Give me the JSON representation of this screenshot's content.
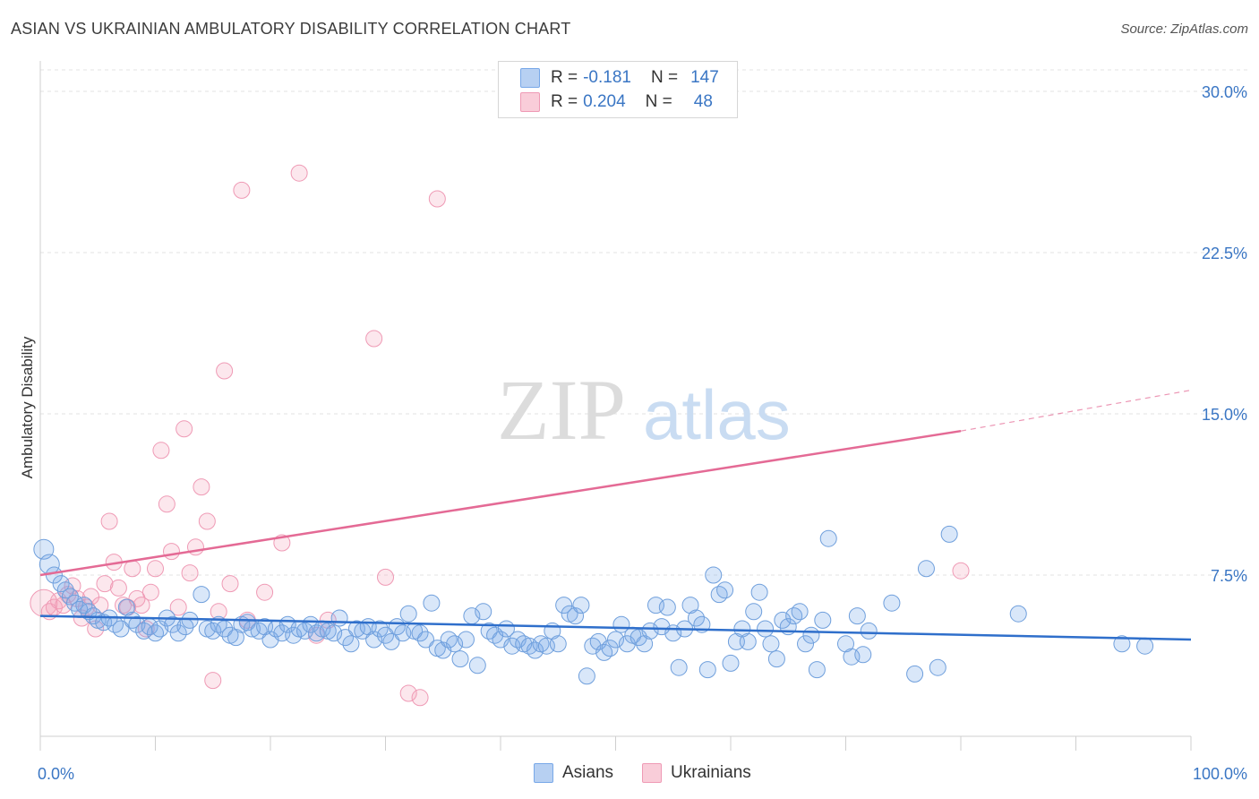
{
  "title": "ASIAN VS UKRAINIAN AMBULATORY DISABILITY CORRELATION CHART",
  "source": "Source: ZipAtlas.com",
  "watermark": {
    "zip": "ZIP",
    "atlas": "atlas"
  },
  "legend": {
    "rows": [
      {
        "r_label": "R =",
        "r_value": "-0.181",
        "n_label": "N =",
        "n_value": "147"
      },
      {
        "r_label": "R =",
        "r_value": "0.204",
        "n_label": "N =",
        "n_value": "48"
      }
    ]
  },
  "bottom_legend": {
    "asians": "Asians",
    "ukrainians": "Ukrainians"
  },
  "colors": {
    "asian_fill": "rgba(120,168,232,0.28)",
    "asian_stroke": "#6f9fdc",
    "asian_line": "#2f6fcb",
    "ukr_fill": "rgba(244,160,185,0.25)",
    "ukr_stroke": "#ef9ab5",
    "ukr_line": "#e46a95",
    "tick_label": "#3a76c4"
  },
  "chart_data": {
    "type": "scatter",
    "title": "ASIAN VS UKRAINIAN AMBULATORY DISABILITY CORRELATION CHART",
    "xlabel": "",
    "ylabel": "Ambulatory Disability",
    "xlim": [
      0,
      100
    ],
    "ylim": [
      0,
      31
    ],
    "x_tick_labels": [
      "0.0%",
      "100.0%"
    ],
    "y_ticks": [
      7.5,
      15.0,
      22.5,
      30.0
    ],
    "y_tick_labels": [
      "7.5%",
      "15.0%",
      "22.5%",
      "30.0%"
    ],
    "grid": true,
    "legend_position": "top-center",
    "series": [
      {
        "name": "Asians",
        "r": -0.181,
        "n": 147,
        "trend": {
          "x": [
            0,
            100
          ],
          "y": [
            5.6,
            4.5
          ]
        },
        "points": [
          [
            0.3,
            8.7
          ],
          [
            0.8,
            8.0
          ],
          [
            1.2,
            7.5
          ],
          [
            1.8,
            7.1
          ],
          [
            2.2,
            6.8
          ],
          [
            2.6,
            6.5
          ],
          [
            3.0,
            6.2
          ],
          [
            3.4,
            5.9
          ],
          [
            3.8,
            6.1
          ],
          [
            4.2,
            5.8
          ],
          [
            4.6,
            5.6
          ],
          [
            5.0,
            5.4
          ],
          [
            5.5,
            5.3
          ],
          [
            6.0,
            5.5
          ],
          [
            6.5,
            5.2
          ],
          [
            7.0,
            5.0
          ],
          [
            7.5,
            6.0
          ],
          [
            8.0,
            5.4
          ],
          [
            8.4,
            5.2
          ],
          [
            9.0,
            4.9
          ],
          [
            9.5,
            5.1
          ],
          [
            10.0,
            4.8
          ],
          [
            10.4,
            5.0
          ],
          [
            11.0,
            5.5
          ],
          [
            11.5,
            5.2
          ],
          [
            12.0,
            4.8
          ],
          [
            12.6,
            5.1
          ],
          [
            13.0,
            5.4
          ],
          [
            14.0,
            6.6
          ],
          [
            14.5,
            5.0
          ],
          [
            15.0,
            4.9
          ],
          [
            15.5,
            5.2
          ],
          [
            16.0,
            5.0
          ],
          [
            16.5,
            4.7
          ],
          [
            17.0,
            4.6
          ],
          [
            17.5,
            5.2
          ],
          [
            18.0,
            5.3
          ],
          [
            18.4,
            5.0
          ],
          [
            19.0,
            4.9
          ],
          [
            19.5,
            5.1
          ],
          [
            20.0,
            4.5
          ],
          [
            20.5,
            5.0
          ],
          [
            21.0,
            4.8
          ],
          [
            21.5,
            5.2
          ],
          [
            22.0,
            4.7
          ],
          [
            22.5,
            5.0
          ],
          [
            23.0,
            4.9
          ],
          [
            23.5,
            5.2
          ],
          [
            24.0,
            4.8
          ],
          [
            24.5,
            5.0
          ],
          [
            25.0,
            4.9
          ],
          [
            25.5,
            4.8
          ],
          [
            26.0,
            5.5
          ],
          [
            26.5,
            4.6
          ],
          [
            27.0,
            4.3
          ],
          [
            27.5,
            5.0
          ],
          [
            28.0,
            4.9
          ],
          [
            28.5,
            5.1
          ],
          [
            29.0,
            4.5
          ],
          [
            29.5,
            5.0
          ],
          [
            30.0,
            4.7
          ],
          [
            30.5,
            4.4
          ],
          [
            31.0,
            5.1
          ],
          [
            31.5,
            4.8
          ],
          [
            32.0,
            5.7
          ],
          [
            32.5,
            4.9
          ],
          [
            33.0,
            4.8
          ],
          [
            33.5,
            4.5
          ],
          [
            34.0,
            6.2
          ],
          [
            34.5,
            4.1
          ],
          [
            35.0,
            4.0
          ],
          [
            35.5,
            4.5
          ],
          [
            36.0,
            4.3
          ],
          [
            36.5,
            3.6
          ],
          [
            37.0,
            4.5
          ],
          [
            37.5,
            5.6
          ],
          [
            38.0,
            3.3
          ],
          [
            38.5,
            5.8
          ],
          [
            39.0,
            4.9
          ],
          [
            39.5,
            4.7
          ],
          [
            40.0,
            4.5
          ],
          [
            40.5,
            5.0
          ],
          [
            41.0,
            4.2
          ],
          [
            41.5,
            4.5
          ],
          [
            42.0,
            4.3
          ],
          [
            42.5,
            4.2
          ],
          [
            43.0,
            4.0
          ],
          [
            43.5,
            4.3
          ],
          [
            44.0,
            4.2
          ],
          [
            44.5,
            4.9
          ],
          [
            45.0,
            4.3
          ],
          [
            45.5,
            6.1
          ],
          [
            46.0,
            5.7
          ],
          [
            46.5,
            5.6
          ],
          [
            47.0,
            6.1
          ],
          [
            47.5,
            2.8
          ],
          [
            48.0,
            4.2
          ],
          [
            48.5,
            4.4
          ],
          [
            49.0,
            3.9
          ],
          [
            49.5,
            4.1
          ],
          [
            50.0,
            4.5
          ],
          [
            50.5,
            5.2
          ],
          [
            51.0,
            4.3
          ],
          [
            51.5,
            4.7
          ],
          [
            52.0,
            4.6
          ],
          [
            52.5,
            4.3
          ],
          [
            53.0,
            4.9
          ],
          [
            53.5,
            6.1
          ],
          [
            54.0,
            5.1
          ],
          [
            54.5,
            6.0
          ],
          [
            55.0,
            4.8
          ],
          [
            55.5,
            3.2
          ],
          [
            56.0,
            5.0
          ],
          [
            56.5,
            6.1
          ],
          [
            57.0,
            5.5
          ],
          [
            57.5,
            5.2
          ],
          [
            58.0,
            3.1
          ],
          [
            58.5,
            7.5
          ],
          [
            59.0,
            6.6
          ],
          [
            59.5,
            6.8
          ],
          [
            60.0,
            3.4
          ],
          [
            60.5,
            4.4
          ],
          [
            61.0,
            5.0
          ],
          [
            61.5,
            4.4
          ],
          [
            62.0,
            5.8
          ],
          [
            62.5,
            6.7
          ],
          [
            63.0,
            5.0
          ],
          [
            63.5,
            4.3
          ],
          [
            64.0,
            3.6
          ],
          [
            64.5,
            5.4
          ],
          [
            65.0,
            5.1
          ],
          [
            65.5,
            5.6
          ],
          [
            66.0,
            5.8
          ],
          [
            66.5,
            4.3
          ],
          [
            67.0,
            4.7
          ],
          [
            67.5,
            3.1
          ],
          [
            68.0,
            5.4
          ],
          [
            68.5,
            9.2
          ],
          [
            70.0,
            4.3
          ],
          [
            70.5,
            3.7
          ],
          [
            71.0,
            5.6
          ],
          [
            71.5,
            3.8
          ],
          [
            72.0,
            4.9
          ],
          [
            74.0,
            6.2
          ],
          [
            76.0,
            2.9
          ],
          [
            77.0,
            7.8
          ],
          [
            78.0,
            3.2
          ],
          [
            79.0,
            9.4
          ],
          [
            85.0,
            5.7
          ],
          [
            94.0,
            4.3
          ],
          [
            96.0,
            4.2
          ]
        ]
      },
      {
        "name": "Ukrainians",
        "r": 0.204,
        "n": 48,
        "trend": {
          "x": [
            0,
            80
          ],
          "y": [
            7.5,
            14.2
          ],
          "dashed_to": [
            100,
            16.1
          ]
        },
        "points": [
          [
            0.3,
            6.2
          ],
          [
            0.8,
            5.8
          ],
          [
            1.2,
            6.0
          ],
          [
            1.6,
            6.3
          ],
          [
            2.0,
            6.1
          ],
          [
            2.4,
            6.6
          ],
          [
            2.8,
            7.0
          ],
          [
            3.2,
            6.4
          ],
          [
            3.6,
            5.5
          ],
          [
            4.0,
            6.0
          ],
          [
            4.4,
            6.5
          ],
          [
            4.8,
            5.0
          ],
          [
            5.2,
            6.1
          ],
          [
            5.6,
            7.1
          ],
          [
            6.0,
            10.0
          ],
          [
            6.4,
            8.1
          ],
          [
            6.8,
            6.9
          ],
          [
            7.2,
            6.1
          ],
          [
            7.6,
            6.0
          ],
          [
            8.0,
            7.8
          ],
          [
            8.4,
            6.4
          ],
          [
            8.8,
            6.1
          ],
          [
            9.2,
            5.0
          ],
          [
            9.6,
            6.7
          ],
          [
            10.0,
            7.8
          ],
          [
            10.5,
            13.3
          ],
          [
            11.0,
            10.8
          ],
          [
            11.4,
            8.6
          ],
          [
            12.0,
            6.0
          ],
          [
            12.5,
            14.3
          ],
          [
            13.0,
            7.6
          ],
          [
            13.5,
            8.8
          ],
          [
            14.0,
            11.6
          ],
          [
            14.5,
            10.0
          ],
          [
            15.0,
            2.6
          ],
          [
            15.5,
            5.8
          ],
          [
            16.0,
            17.0
          ],
          [
            16.5,
            7.1
          ],
          [
            17.5,
            25.4
          ],
          [
            18.0,
            5.4
          ],
          [
            19.5,
            6.7
          ],
          [
            21.0,
            9.0
          ],
          [
            22.5,
            26.2
          ],
          [
            24.0,
            4.7
          ],
          [
            25.0,
            5.4
          ],
          [
            29.0,
            18.5
          ],
          [
            30.0,
            7.4
          ],
          [
            32.0,
            2.0
          ],
          [
            33.0,
            1.8
          ],
          [
            34.5,
            25.0
          ],
          [
            80.0,
            7.7
          ]
        ]
      }
    ]
  }
}
